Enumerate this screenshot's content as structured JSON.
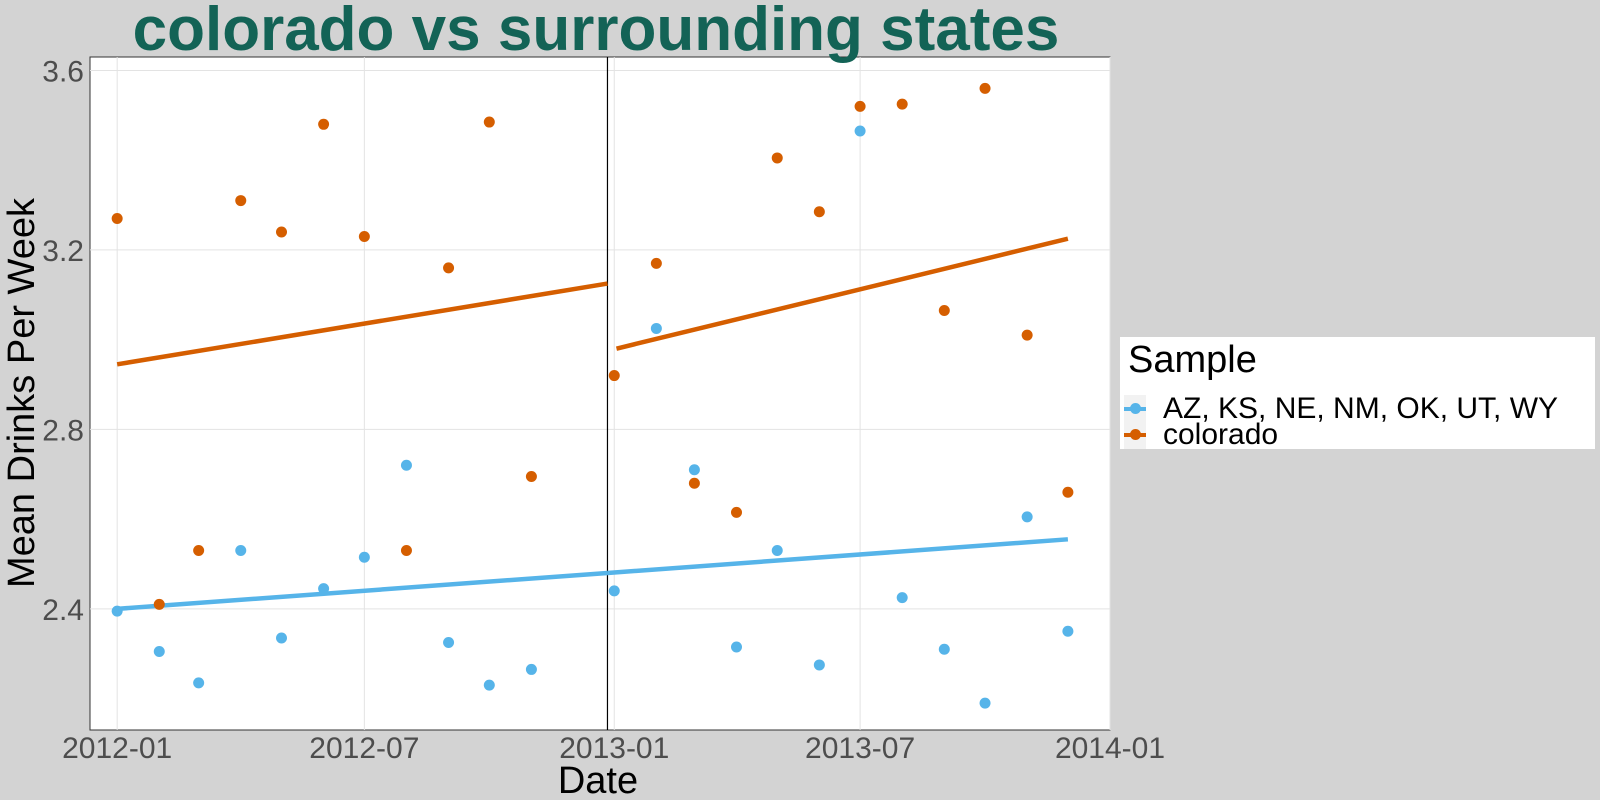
{
  "chart_data": {
    "type": "scatter",
    "title": "colorado vs surrounding states",
    "xlabel": "Date",
    "ylabel": "Mean Drinks Per Week",
    "x_ticks": [
      "2012-01",
      "2012-07",
      "2013-01",
      "2013-07",
      "2014-01"
    ],
    "y_ticks": [
      "2.4",
      "2.8",
      "3.2",
      "3.6"
    ],
    "xlim": [
      "2011-12-12",
      "2014-01-01"
    ],
    "ylim": [
      2.13,
      3.63
    ],
    "grid": true,
    "intervention_line": "2012-12-27",
    "legend": {
      "title": "Sample",
      "placement": "right"
    },
    "series": [
      {
        "name": "AZ, KS, NE, NM, OK, UT, WY",
        "color": "#56b4e9",
        "x": [
          "2012-01-01",
          "2012-02-01",
          "2012-03-01",
          "2012-04-01",
          "2012-05-01",
          "2012-06-01",
          "2012-07-01",
          "2012-08-01",
          "2012-09-01",
          "2012-10-01",
          "2012-11-01",
          "2013-01-01",
          "2013-02-01",
          "2013-03-01",
          "2013-04-01",
          "2013-05-01",
          "2013-06-01",
          "2013-07-01",
          "2013-08-01",
          "2013-09-01",
          "2013-10-01",
          "2013-11-01",
          "2013-12-01"
        ],
        "y": [
          2.395,
          2.305,
          2.235,
          2.53,
          2.335,
          2.445,
          2.515,
          2.72,
          2.325,
          2.23,
          2.265,
          2.44,
          3.025,
          2.71,
          2.315,
          2.53,
          2.275,
          3.465,
          2.425,
          2.31,
          2.19,
          2.605,
          2.35
        ],
        "trend": [
          {
            "x": [
              "2012-01-01",
              "2012-12-27"
            ],
            "y": [
              2.4,
              2.48
            ]
          },
          {
            "x": [
              "2012-12-27",
              "2013-12-01"
            ],
            "y": [
              2.48,
              2.555
            ]
          }
        ]
      },
      {
        "name": "colorado",
        "color": "#d55e00",
        "x": [
          "2012-01-01",
          "2012-02-01",
          "2012-03-01",
          "2012-04-01",
          "2012-05-01",
          "2012-06-01",
          "2012-07-01",
          "2012-08-01",
          "2012-09-01",
          "2012-10-01",
          "2012-11-01",
          "2013-01-01",
          "2013-02-01",
          "2013-03-01",
          "2013-04-01",
          "2013-05-01",
          "2013-06-01",
          "2013-07-01",
          "2013-08-01",
          "2013-09-01",
          "2013-10-01",
          "2013-11-01",
          "2013-12-01"
        ],
        "y": [
          3.27,
          2.41,
          2.53,
          3.31,
          3.24,
          3.48,
          3.23,
          2.53,
          3.16,
          3.485,
          2.695,
          2.92,
          3.17,
          2.68,
          2.615,
          3.405,
          3.285,
          3.52,
          3.525,
          3.065,
          3.56,
          3.01,
          2.66
        ],
        "trend": [
          {
            "x": [
              "2012-01-01",
              "2012-12-27"
            ],
            "y": [
              2.945,
              3.125
            ]
          },
          {
            "x": [
              "2012-12-27",
              "2013-12-01"
            ],
            "y": [
              2.98,
              3.225
            ]
          }
        ]
      }
    ]
  }
}
